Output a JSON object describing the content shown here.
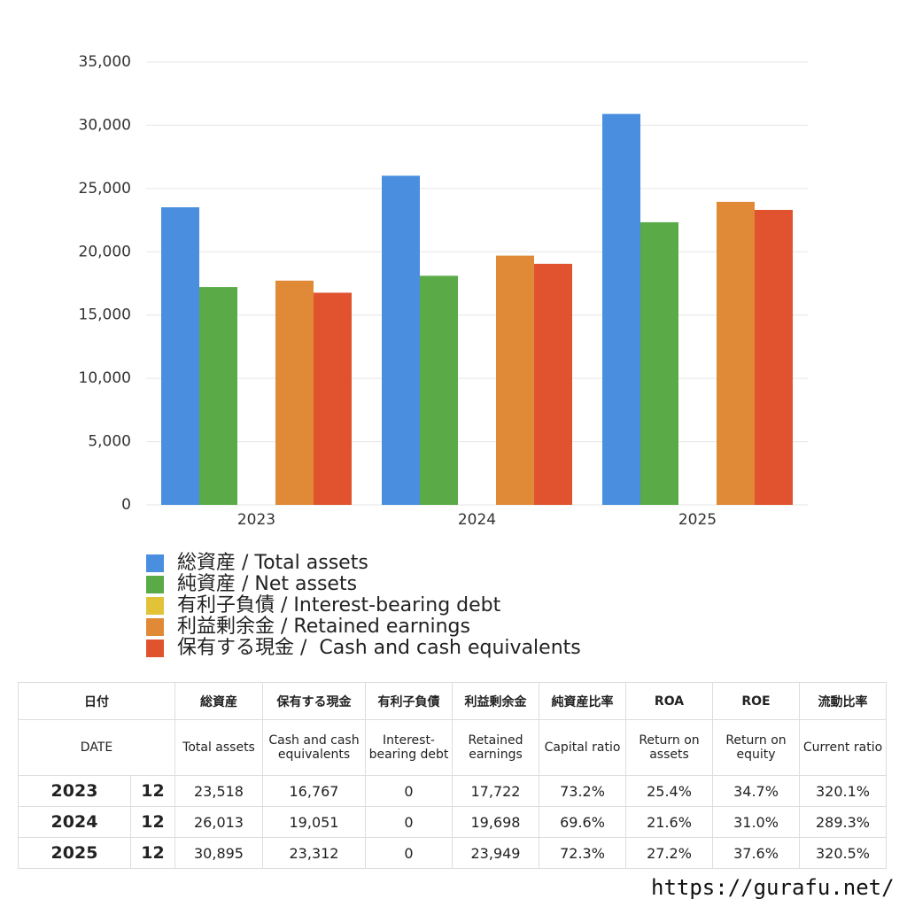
{
  "chart_data": {
    "type": "bar",
    "categories": [
      "2023",
      "2024",
      "2025"
    ],
    "series": [
      {
        "name": "総資産 / Total assets",
        "color": "#4a8ee0",
        "values": [
          23518,
          26013,
          30895
        ]
      },
      {
        "name": "純資産 / Net assets",
        "color": "#5aaa48",
        "values": [
          17215,
          18105,
          22337
        ]
      },
      {
        "name": "有利子負債 / Interest-bearing debt",
        "color": "#e2c237",
        "values": [
          0,
          0,
          0
        ]
      },
      {
        "name": "利益剰余金 / Retained earnings",
        "color": "#e08a38",
        "values": [
          17722,
          19698,
          23949
        ]
      },
      {
        "name": "保有する現金 /  Cash and cash equivalents",
        "color": "#e0532e",
        "values": [
          16767,
          19051,
          23312
        ]
      }
    ],
    "ylim": [
      0,
      35000
    ],
    "yticks": [
      0,
      {
        "value": 5000,
        "label": "5,000"
      },
      {
        "value": 10000,
        "label": "10,000"
      },
      {
        "value": 15000,
        "label": "15,000"
      },
      {
        "value": 20000,
        "label": "20,000"
      },
      {
        "value": 25000,
        "label": "25,000"
      },
      {
        "value": 30000,
        "label": "30,000"
      },
      {
        "value": 35000,
        "label": "35,000"
      }
    ],
    "grid": true
  },
  "table": {
    "header_ja": [
      "日付",
      "総資産",
      "保有する現金",
      "有利子負債",
      "利益剰余金",
      "純資産比率",
      "ROA",
      "ROE",
      "流動比率"
    ],
    "header_en": [
      "DATE",
      "Total assets",
      "Cash and cash equivalents",
      "Interest-bearing debt",
      "Retained earnings",
      "Capital ratio",
      "Return on assets",
      "Return on equity",
      "Current ratio"
    ],
    "rows": [
      [
        "2023",
        "12",
        "23,518",
        "16,767",
        "0",
        "17,722",
        "73.2%",
        "25.4%",
        "34.7%",
        "320.1%"
      ],
      [
        "2024",
        "12",
        "26,013",
        "19,051",
        "0",
        "19,698",
        "69.6%",
        "21.6%",
        "31.0%",
        "289.3%"
      ],
      [
        "2025",
        "12",
        "30,895",
        "23,312",
        "0",
        "23,949",
        "72.3%",
        "27.2%",
        "37.6%",
        "320.5%"
      ]
    ]
  },
  "footer": "https://gurafu.net/"
}
